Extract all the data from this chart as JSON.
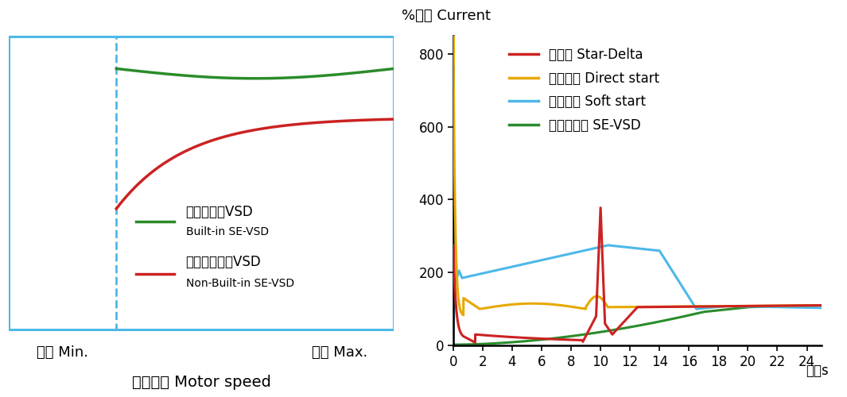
{
  "left_panel": {
    "border_color": "#4db8e8",
    "green_line_label_cn": "内置欧迈克VSD",
    "green_line_label_en": "Built-in SE-VSD",
    "red_line_label_cn": "无内置欧迈克VSD",
    "red_line_label_en": "Non-Built-in SE-VSD",
    "xlabel_min": "最小 Min.",
    "xlabel_max": "最大 Max.",
    "xlabel_bottom": "电机速度 Motor speed",
    "green_color": "#2a8c2a",
    "red_color": "#cc2222"
  },
  "right_panel": {
    "ylabel": "%电流 Current",
    "xlabel": "时间s",
    "ylim": [
      0,
      850
    ],
    "yticks": [
      0,
      200,
      400,
      600,
      800
    ],
    "xlim": [
      0,
      25
    ],
    "xticks": [
      0,
      2,
      4,
      6,
      8,
      10,
      12,
      14,
      16,
      18,
      20,
      22,
      24
    ],
    "star_delta_color": "#cc2222",
    "direct_start_color": "#e6a800",
    "soft_start_color": "#4db8e8",
    "sevsd_color": "#2a8c2a",
    "legend_star_delta": "星三角 Star-Delta",
    "legend_direct": "直接启动 Direct start",
    "legend_soft": "软接启动 Soft start",
    "legend_sevsd": "欧迈克变频 SE-VSD"
  }
}
